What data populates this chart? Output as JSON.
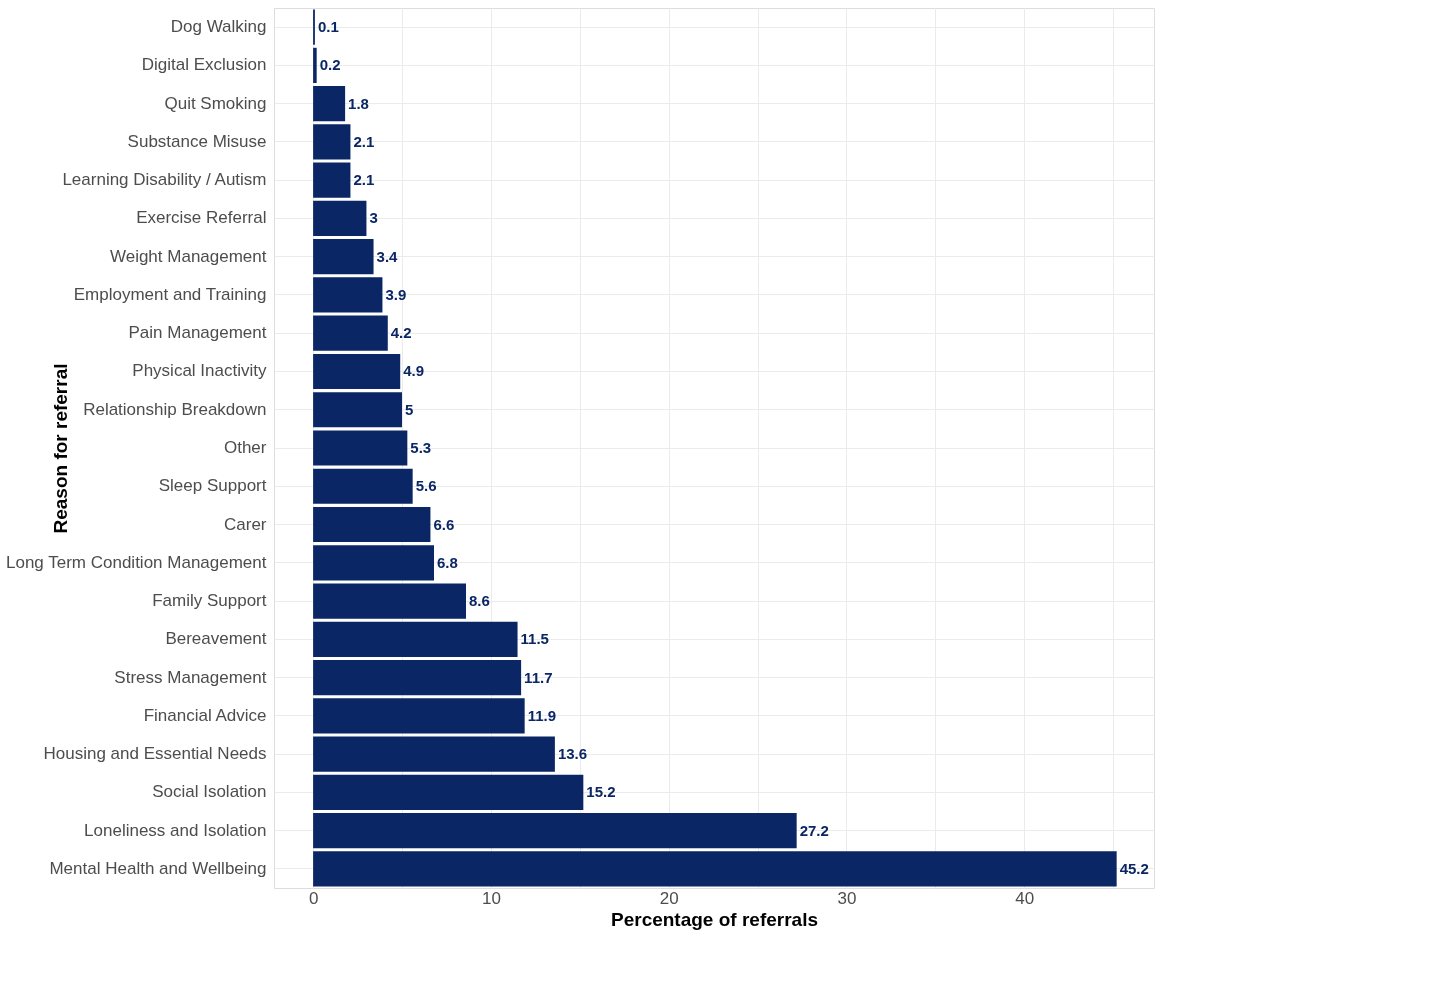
{
  "chart_data": {
    "type": "bar",
    "orientation": "horizontal",
    "xlabel": "Percentage of referrals",
    "ylabel": "Reason for referral",
    "categories": [
      "Dog Walking",
      "Digital Exclusion",
      "Quit Smoking",
      "Substance Misuse",
      "Learning Disability / Autism",
      "Exercise Referral",
      "Weight Management",
      "Employment and Training",
      "Pain Management",
      "Physical Inactivity",
      "Relationship Breakdown",
      "Other",
      "Sleep Support",
      "Carer",
      "Long Term Condition Management",
      "Family Support",
      "Bereavement",
      "Stress Management",
      "Financial Advice",
      "Housing and Essential Needs",
      "Social Isolation",
      "Loneliness and Isolation",
      "Mental Health and Wellbeing"
    ],
    "values": [
      0.1,
      0.2,
      1.8,
      2.1,
      2.1,
      3,
      3.4,
      3.9,
      4.2,
      4.9,
      5,
      5.3,
      5.6,
      6.6,
      6.8,
      8.6,
      11.5,
      11.7,
      11.9,
      13.6,
      15.2,
      27.2,
      45.2
    ],
    "color": "#0b2665",
    "data_labels": true,
    "grid": true,
    "xlim": [
      -2.2,
      47.3
    ],
    "xticks": [
      0,
      {
        "value": 5,
        "label": null
      },
      10,
      {
        "value": 15,
        "label": null
      },
      20,
      {
        "value": 25,
        "label": null
      },
      30,
      {
        "value": 35,
        "label": null
      },
      40,
      {
        "value": 45,
        "label": null
      }
    ]
  }
}
